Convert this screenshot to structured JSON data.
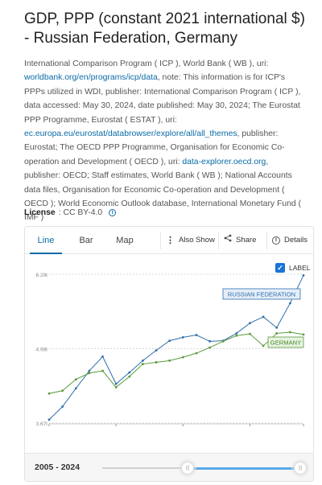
{
  "title": "GDP, PPP (constant 2021 international $) - Russian Federation, Germany",
  "source": {
    "part1": "International Comparison Program ( ICP ), World Bank ( WB ), uri: ",
    "link1": "worldbank.org/en/programs/icp/data",
    "part2": ", note: This information is for ICP's PPPs utilized in WDI, publisher: International Comparison Program ( ICP ), data accessed: May 30, 2024, date published: May 30, 2024; The Eurostat PPP Programme, Eurostat ( ESTAT ), uri: ",
    "link2": "ec.europa.eu/eurostat/databrowser/explore/all/all_themes",
    "part3": ", publisher: Eurostat; The OECD PPP Programme, Organisation for Economic Co-operation and Development ( OECD ), uri: ",
    "link3": "data-explorer.oecd.org",
    "part4": ", publisher: OECD; Staff estimates, World Bank ( WB ); National Accounts data files, Organisation for Economic Co-operation and Development ( OECD ); World Economic Outlook database, International Monetary Fund ( IMF )"
  },
  "license": {
    "label": "License",
    "value": ": CC BY-4.0"
  },
  "tabs": {
    "line": "Line",
    "bar": "Bar",
    "map": "Map"
  },
  "actions": {
    "more": "Also Show",
    "share": "Share",
    "details": "Details"
  },
  "label_toggle": "LABEL",
  "range": {
    "start": "2005",
    "sep": "-",
    "end": "2024"
  },
  "colors": {
    "russia": "#2e6fad",
    "germany": "#5a9a3c",
    "accent": "#0a6ba6"
  },
  "icons": {
    "more": "dots-vertical-icon",
    "share": "share-icon",
    "details": "info-icon"
  },
  "chart_data": {
    "type": "line",
    "x": [
      2005,
      2006,
      2007,
      2008,
      2009,
      2010,
      2011,
      2012,
      2013,
      2014,
      2015,
      2016,
      2017,
      2018,
      2019,
      2020,
      2021,
      2022,
      2023,
      2024
    ],
    "ytick_labels": [
      "6.29t",
      "4.98t",
      "3.67t"
    ],
    "ylim": [
      3.67,
      6.29
    ],
    "series": [
      {
        "name": "RUSSIAN FEDERATION",
        "values": [
          3.73,
          3.96,
          4.28,
          4.59,
          4.84,
          4.36,
          4.56,
          4.77,
          4.95,
          5.12,
          5.18,
          5.22,
          5.11,
          5.12,
          5.25,
          5.43,
          5.54,
          5.35,
          5.78,
          6.27
        ]
      },
      {
        "name": "GERMANY",
        "values": [
          4.19,
          4.24,
          4.44,
          4.55,
          4.59,
          4.3,
          4.49,
          4.71,
          4.74,
          4.77,
          4.83,
          4.9,
          5.0,
          5.11,
          5.21,
          5.24,
          5.03,
          5.25,
          5.27,
          5.23
        ]
      }
    ]
  }
}
